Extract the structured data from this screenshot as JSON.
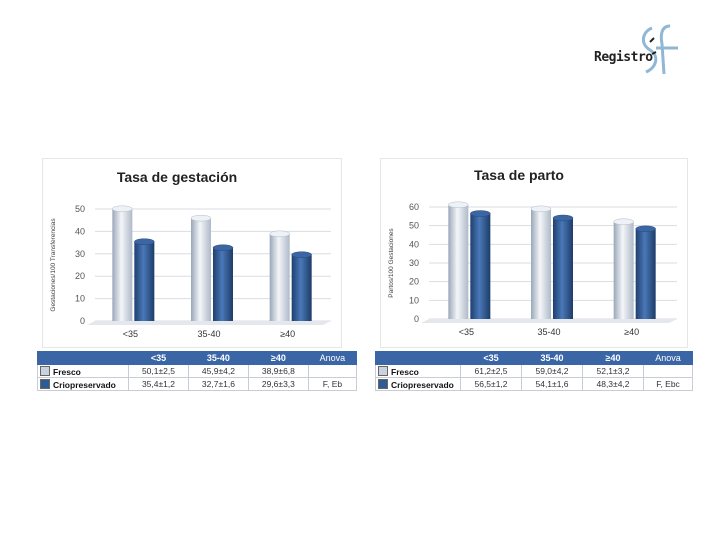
{
  "logo": {
    "text": "Registro",
    "brand_color": "#8fb7d6"
  },
  "colors": {
    "fresco": "#c9d2de",
    "crio": "#2f5a94",
    "header": "#3a66a6"
  },
  "chart_data": [
    {
      "type": "bar",
      "title": "Tasa de gestación",
      "ylabel": "Gestaciones/100 Transferencias",
      "categories": [
        "<35",
        "35-40",
        "≥40"
      ],
      "ylim": [
        0,
        50
      ],
      "yticks": [
        0,
        10,
        20,
        30,
        40,
        50
      ],
      "series": [
        {
          "name": "Fresco",
          "values": [
            50.1,
            45.9,
            38.9
          ]
        },
        {
          "name": "Crio",
          "values": [
            35.4,
            32.7,
            29.6
          ]
        }
      ],
      "table": {
        "headers": [
          "",
          "<35",
          "35-40",
          "≥40",
          "Anova"
        ],
        "rows": [
          {
            "label": "Fresco",
            "cells": [
              "50,1±2,5",
              "45,9±4,2",
              "38,9±6,8",
              ""
            ]
          },
          {
            "label": "Criopreservado",
            "cells": [
              "35,4±1,2",
              "32,7±1,6",
              "29,6±3,3",
              "F, Eb"
            ]
          }
        ]
      }
    },
    {
      "type": "bar",
      "title": "Tasa de parto",
      "ylabel": "Partos/100 Gestaciones",
      "categories": [
        "<35",
        "35-40",
        "≥40"
      ],
      "ylim": [
        0,
        60
      ],
      "yticks": [
        0,
        10,
        20,
        30,
        40,
        50,
        60
      ],
      "series": [
        {
          "name": "Fresco",
          "values": [
            61.2,
            59.0,
            52.1
          ]
        },
        {
          "name": "Crio",
          "values": [
            56.5,
            54.1,
            48.3
          ]
        }
      ],
      "table": {
        "headers": [
          "",
          "<35",
          "35-40",
          "≥40",
          "Anova"
        ],
        "rows": [
          {
            "label": "Fresco",
            "cells": [
              "61,2±2,5",
              "59,0±4,2",
              "52,1±3,2",
              ""
            ]
          },
          {
            "label": "Criopreservado",
            "cells": [
              "56,5±1,2",
              "54,1±1,6",
              "48,3±4,2",
              "F, Ebc"
            ]
          }
        ]
      }
    }
  ]
}
